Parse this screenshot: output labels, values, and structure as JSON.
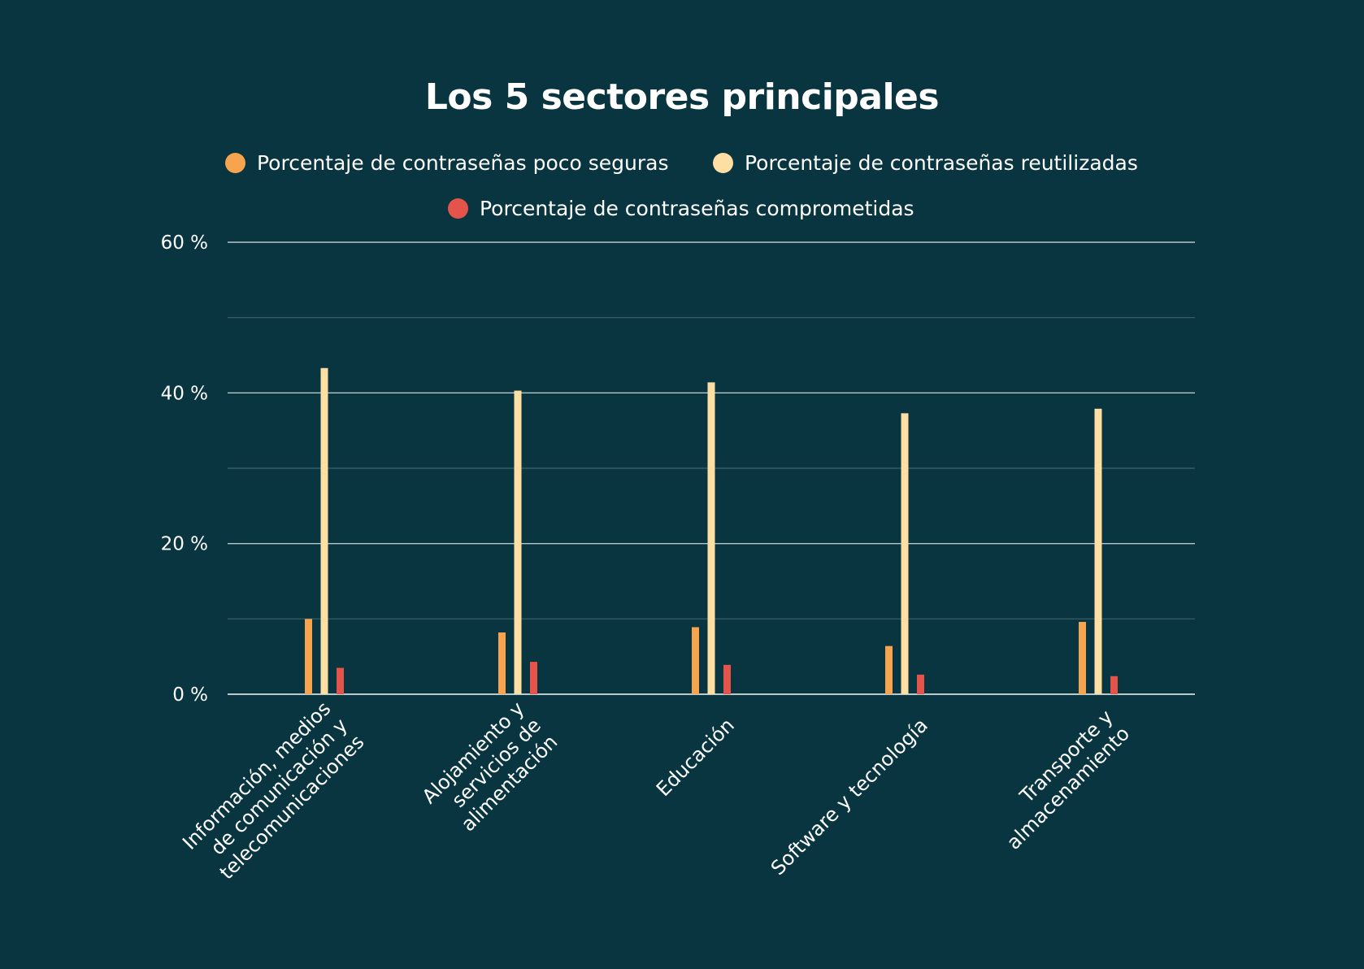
{
  "chart_data": {
    "type": "bar",
    "title": "Los 5 sectores principales",
    "categories": [
      [
        "Información, medios",
        "de comunicación y",
        "telecomunicaciones"
      ],
      [
        "Alojamiento y",
        "servicios de",
        "alimentación"
      ],
      [
        "Educación"
      ],
      [
        "Software y tecnología"
      ],
      [
        "Transporte y",
        "almacenamiento"
      ]
    ],
    "series": [
      {
        "name": "Porcentaje de contraseñas poco seguras",
        "color": "#F8A44E",
        "values": [
          10.0,
          8.2,
          8.9,
          6.4,
          9.6
        ]
      },
      {
        "name": "Porcentaje de contraseñas reutilizadas",
        "color": "#FDDFA4",
        "values": [
          43.3,
          40.3,
          41.4,
          37.3,
          37.9
        ]
      },
      {
        "name": "Porcentaje de contraseñas comprometidas",
        "color": "#E5544B",
        "values": [
          3.5,
          4.3,
          3.9,
          2.6,
          2.4
        ]
      }
    ],
    "ylim": [
      0,
      60
    ],
    "yticks": [
      0,
      20,
      40,
      60
    ],
    "ytick_labels": [
      "0 %",
      "20 %",
      "40 %",
      "60 %"
    ],
    "minor_gridlines": [
      10,
      30,
      50
    ],
    "grid": true,
    "legend_placement": "top-center",
    "xlabel": "",
    "ylabel": ""
  }
}
